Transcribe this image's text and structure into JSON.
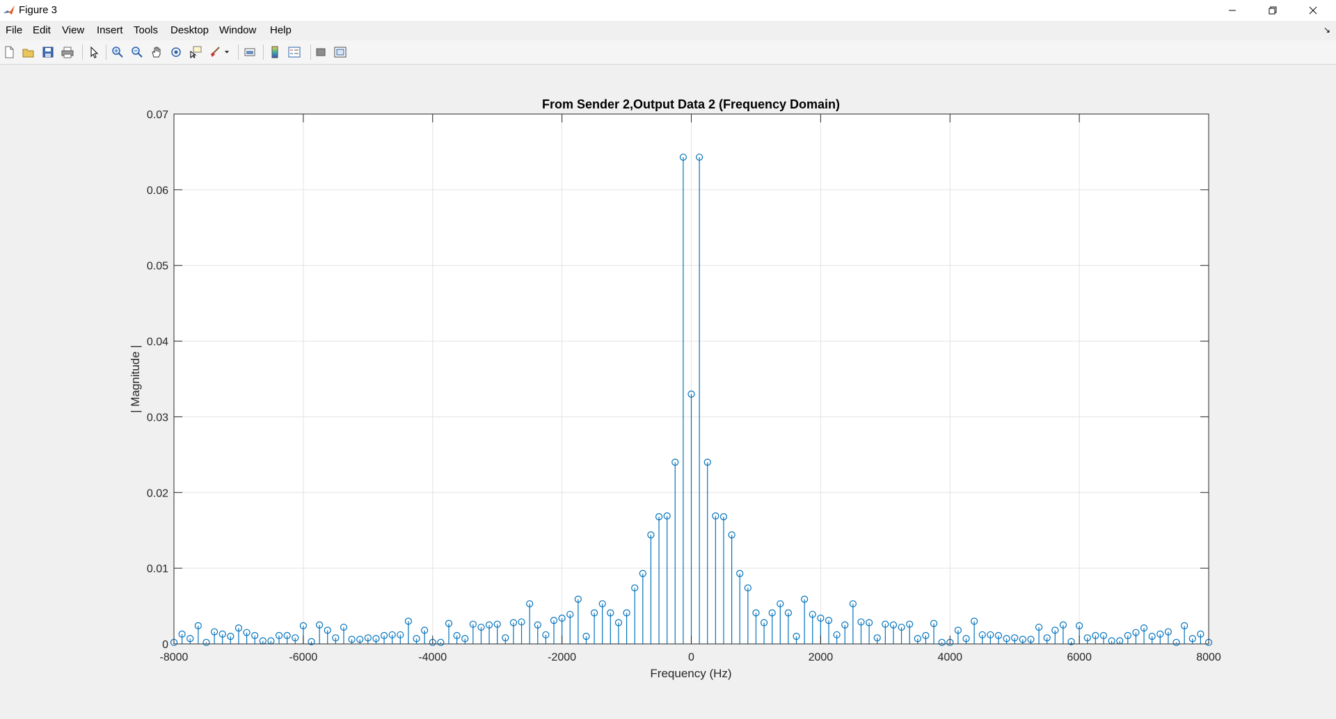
{
  "window": {
    "title": "Figure 3",
    "minimize_icon": "minimize-icon",
    "maximize_icon": "restore-icon",
    "close_icon": "close-icon"
  },
  "menu": {
    "items": [
      "File",
      "Edit",
      "View",
      "Insert",
      "Tools",
      "Desktop",
      "Window",
      "Help"
    ]
  },
  "toolbar": {
    "icons": [
      "new-figure-icon",
      "open-file-icon",
      "save-icon",
      "print-icon",
      "edit-plot-icon",
      "zoom-in-icon",
      "zoom-out-icon",
      "pan-icon",
      "rotate-3d-icon",
      "data-cursor-icon",
      "brush-icon",
      "link-plot-icon",
      "insert-colorbar-icon",
      "insert-legend-icon",
      "hide-plot-tools-icon",
      "show-plot-tools-icon"
    ]
  },
  "colors": {
    "stem": "#0072BD",
    "grid": "#e3e3e3",
    "axes": "#262626"
  },
  "chart_data": {
    "type": "stem",
    "title": "From Sender 2,Output Data 2 (Frequency Domain)",
    "xlabel": "Frequency (Hz)",
    "ylabel": "| Magnitude |",
    "xlim": [
      -8000,
      8000
    ],
    "ylim": [
      0,
      0.07
    ],
    "xticks": [
      -8000,
      -6000,
      -4000,
      -2000,
      0,
      2000,
      4000,
      6000,
      8000
    ],
    "xtick_labels": [
      "-8000",
      "-6000",
      "-4000",
      "-2000",
      "0",
      "2000",
      "4000",
      "6000",
      "8000"
    ],
    "yticks": [
      0,
      0.01,
      0.02,
      0.03,
      0.04,
      0.05,
      0.06,
      0.07
    ],
    "ytick_labels": [
      "0",
      "0.01",
      "0.02",
      "0.03",
      "0.04",
      "0.05",
      "0.06",
      "0.07"
    ],
    "grid": true,
    "x_step": 125,
    "x_start": -8000,
    "values": [
      0.0002,
      0.0013,
      0.0007,
      0.0024,
      0.0002,
      0.0016,
      0.0013,
      0.001,
      0.0021,
      0.0015,
      0.0011,
      0.0004,
      0.0004,
      0.0011,
      0.0011,
      0.0008,
      0.0024,
      0.0003,
      0.0025,
      0.0018,
      0.0008,
      0.0022,
      0.0006,
      0.0006,
      0.0008,
      0.0007,
      0.0011,
      0.0012,
      0.0012,
      0.003,
      0.0007,
      0.0018,
      0.0002,
      0.0002,
      0.0027,
      0.0011,
      0.0007,
      0.0026,
      0.0022,
      0.0025,
      0.0026,
      0.0008,
      0.0028,
      0.0029,
      0.0053,
      0.0025,
      0.0012,
      0.0031,
      0.0034,
      0.0039,
      0.0059,
      0.001,
      0.0041,
      0.0053,
      0.0041,
      0.0028,
      0.0041,
      0.0074,
      0.0093,
      0.0144,
      0.0168,
      0.0169,
      0.024,
      0.0643,
      0.033,
      0.0643,
      0.024,
      0.0169,
      0.0168,
      0.0144,
      0.0093,
      0.0074,
      0.0041,
      0.0028,
      0.0041,
      0.0053,
      0.0041,
      0.001,
      0.0059,
      0.0039,
      0.0034,
      0.0031,
      0.0012,
      0.0025,
      0.0053,
      0.0029,
      0.0028,
      0.0008,
      0.0026,
      0.0025,
      0.0022,
      0.0026,
      0.0007,
      0.0011,
      0.0027,
      0.0002,
      0.0002,
      0.0018,
      0.0007,
      0.003,
      0.0012,
      0.0012,
      0.0011,
      0.0007,
      0.0008,
      0.0006,
      0.0006,
      0.0022,
      0.0008,
      0.0018,
      0.0025,
      0.0003,
      0.0024,
      0.0008,
      0.0011,
      0.0011,
      0.0004,
      0.0004,
      0.0011,
      0.0015,
      0.0021,
      0.001,
      0.0013,
      0.0016,
      0.0002,
      0.0024,
      0.0007,
      0.0013,
      0.0002
    ]
  }
}
